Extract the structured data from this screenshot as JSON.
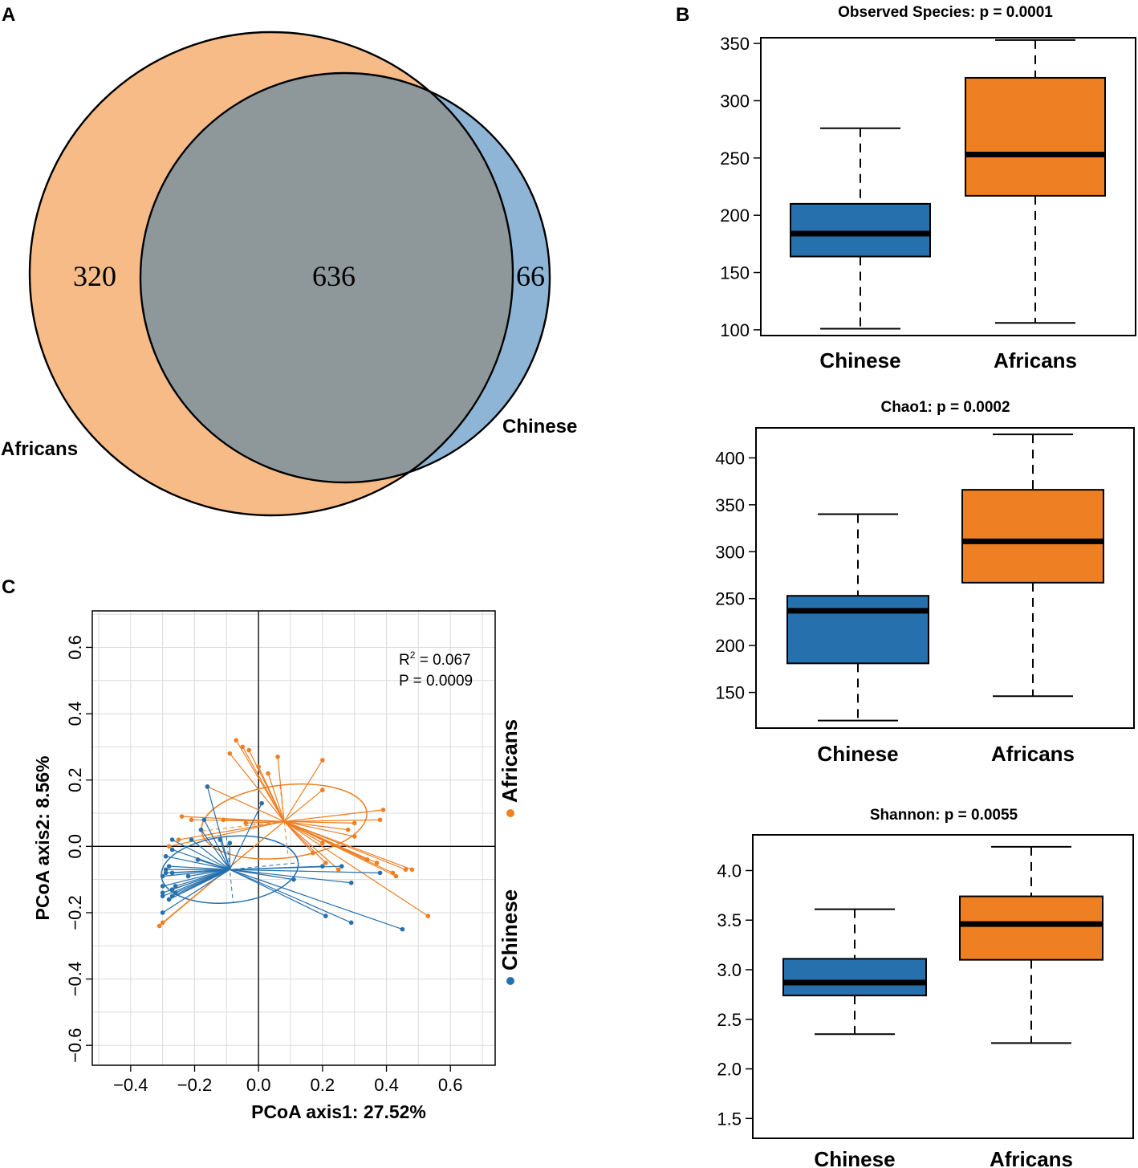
{
  "panel_labels": {
    "a": "A",
    "b": "B",
    "c": "C"
  },
  "colors": {
    "africans": "#ee7f22",
    "chinese": "#2671ad",
    "africans_venn": "#f6bb87",
    "chinese_venn": "#8fb5d6",
    "overlap_venn": "#8e989b"
  },
  "chart_data": [
    {
      "type": "venn",
      "panel": "A",
      "sets": [
        "Africans",
        "Chinese"
      ],
      "labels": {
        "africans": "Africans",
        "chinese": "Chinese"
      },
      "counts": {
        "africans_only": "320",
        "shared": "636",
        "chinese_only": "66"
      }
    },
    {
      "type": "boxplot",
      "panel": "B",
      "title": "Observed Species: p = 0.0001",
      "categories": [
        "Chinese",
        "Africans"
      ],
      "ylim": [
        95,
        355
      ],
      "yticks": [
        100,
        150,
        200,
        250,
        300,
        350
      ],
      "boxes": [
        {
          "name": "Chinese",
          "min": 101,
          "q1": 164,
          "median": 184,
          "q3": 210,
          "max": 276
        },
        {
          "name": "Africans",
          "min": 106,
          "q1": 217,
          "median": 253,
          "q3": 320,
          "max": 353
        }
      ]
    },
    {
      "type": "boxplot",
      "panel": "B",
      "title": "Chao1: p = 0.0002",
      "categories": [
        "Chinese",
        "Africans"
      ],
      "ylim": [
        112,
        432
      ],
      "yticks": [
        150,
        200,
        250,
        300,
        350,
        400
      ],
      "boxes": [
        {
          "name": "Chinese",
          "min": 120,
          "q1": 181,
          "median": 237,
          "q3": 253,
          "max": 340
        },
        {
          "name": "Africans",
          "min": 146,
          "q1": 267,
          "median": 311,
          "q3": 366,
          "max": 425
        }
      ]
    },
    {
      "type": "boxplot",
      "panel": "B",
      "title": "Shannon: p = 0.0055",
      "categories": [
        "Chinese",
        "Africans"
      ],
      "ylim": [
        1.3,
        4.36
      ],
      "yticks": [
        1.5,
        2.0,
        2.5,
        3.0,
        3.5,
        4.0
      ],
      "ytick_labels": [
        "1.5",
        "2.0",
        "2.5",
        "3.0",
        "3.5",
        "4.0"
      ],
      "boxes": [
        {
          "name": "Chinese",
          "min": 2.35,
          "q1": 2.74,
          "median": 2.87,
          "q3": 3.11,
          "max": 3.61
        },
        {
          "name": "Africans",
          "min": 2.26,
          "q1": 3.1,
          "median": 3.46,
          "q3": 3.74,
          "max": 4.24
        }
      ]
    },
    {
      "type": "scatter",
      "panel": "C",
      "xlabel": "PCoA axis1: 27.52%",
      "ylabel": "PCoA axis2: 8.56%",
      "xlim": [
        -0.52,
        0.74
      ],
      "ylim": [
        -0.66,
        0.71
      ],
      "xticks": [
        -0.4,
        -0.2,
        0.0,
        0.2,
        0.4,
        0.6
      ],
      "xtick_labels": [
        "−0.4",
        "−0.2",
        "0.0",
        "0.2",
        "0.4",
        "0.6"
      ],
      "yticks": [
        -0.6,
        -0.4,
        -0.2,
        0.0,
        0.2,
        0.4,
        0.6
      ],
      "ytick_labels": [
        "−0.6",
        "−0.4",
        "−0.2",
        "0.0",
        "0.2",
        "0.4",
        "0.6"
      ],
      "stats": {
        "r2_prefix": "R",
        "r2_sup": "2",
        "r2_value": " = 0.067",
        "p_text": "P = 0.0009"
      },
      "legend": [
        "Africans",
        "Chinese"
      ],
      "series": [
        {
          "name": "Africans",
          "centroid": [
            0.08,
            0.075
          ],
          "ellipse": {
            "cx": 0.08,
            "cy": 0.075,
            "rx": 0.52,
            "ry": 0.22,
            "angle": -0.115
          },
          "points": [
            [
              -0.07,
              0.32
            ],
            [
              -0.09,
              0.28
            ],
            [
              -0.03,
              0.29
            ],
            [
              -0.05,
              0.3
            ],
            [
              0.06,
              0.27
            ],
            [
              0.0,
              0.24
            ],
            [
              0.2,
              0.26
            ],
            [
              0.03,
              0.22
            ],
            [
              -0.16,
              0.18
            ],
            [
              0.2,
              0.17
            ],
            [
              0.39,
              0.11
            ],
            [
              0.38,
              0.08
            ],
            [
              0.3,
              0.07
            ],
            [
              -0.24,
              0.09
            ],
            [
              -0.21,
              0.08
            ],
            [
              -0.11,
              0.08
            ],
            [
              -0.04,
              0.07
            ],
            [
              0.28,
              0.05
            ],
            [
              0.3,
              0.03
            ],
            [
              0.2,
              0.01
            ],
            [
              -0.25,
              0.02
            ],
            [
              -0.28,
              0.0
            ],
            [
              0.17,
              -0.02
            ],
            [
              0.21,
              -0.05
            ],
            [
              0.34,
              -0.04
            ],
            [
              0.37,
              -0.05
            ],
            [
              0.48,
              -0.07
            ],
            [
              0.46,
              -0.07
            ],
            [
              0.42,
              -0.08
            ],
            [
              0.25,
              -0.07
            ],
            [
              0.43,
              -0.09
            ],
            [
              0.53,
              -0.21
            ],
            [
              -0.31,
              -0.24
            ],
            [
              -0.3,
              -0.23
            ]
          ]
        },
        {
          "name": "Chinese",
          "centroid": [
            -0.09,
            -0.07
          ],
          "ellipse": {
            "cx": -0.09,
            "cy": -0.07,
            "rx": 0.43,
            "ry": 0.2,
            "angle": -0.1
          },
          "points": [
            [
              -0.16,
              0.18
            ],
            [
              0.01,
              0.13
            ],
            [
              -0.17,
              0.08
            ],
            [
              -0.18,
              0.05
            ],
            [
              -0.27,
              0.02
            ],
            [
              -0.21,
              0.02
            ],
            [
              -0.12,
              0.02
            ],
            [
              -0.09,
              0.01
            ],
            [
              -0.27,
              -0.01
            ],
            [
              -0.29,
              -0.03
            ],
            [
              -0.19,
              -0.04
            ],
            [
              -0.28,
              -0.06
            ],
            [
              -0.29,
              -0.07
            ],
            [
              0.2,
              -0.06
            ],
            [
              0.26,
              -0.06
            ],
            [
              -0.29,
              -0.08
            ],
            [
              -0.27,
              -0.08
            ],
            [
              -0.3,
              -0.09
            ],
            [
              -0.22,
              -0.09
            ],
            [
              0.38,
              -0.08
            ],
            [
              0.11,
              -0.1
            ],
            [
              0.29,
              -0.11
            ],
            [
              -0.3,
              -0.12
            ],
            [
              -0.26,
              -0.12
            ],
            [
              -0.27,
              -0.13
            ],
            [
              -0.26,
              -0.14
            ],
            [
              -0.3,
              -0.14
            ],
            [
              -0.27,
              -0.15
            ],
            [
              -0.3,
              -0.15
            ],
            [
              -0.28,
              -0.16
            ],
            [
              -0.28,
              -0.16
            ],
            [
              -0.3,
              -0.2
            ],
            [
              0.21,
              -0.21
            ],
            [
              0.29,
              -0.23
            ],
            [
              0.45,
              -0.25
            ]
          ]
        }
      ]
    }
  ]
}
